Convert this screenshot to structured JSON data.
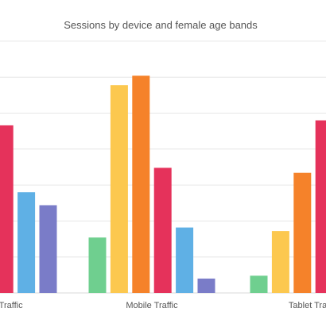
{
  "chart_data": {
    "type": "bar",
    "title": "Sessions by device and female age bands",
    "xlabel": "",
    "ylabel": "",
    "categories": [
      "Desktop Traffic",
      "Mobile Traffic",
      "Tablet Traffic"
    ],
    "ylim": [
      0,
      300
    ],
    "grid": true,
    "legend": "none",
    "series": [
      {
        "color": "#6fcf8f",
        "values": [
          null,
          77,
          24
        ]
      },
      {
        "color": "#fcc84f",
        "values": [
          null,
          289,
          86
        ]
      },
      {
        "color": "#f5822a",
        "values": [
          null,
          302,
          167
        ]
      },
      {
        "color": "#e5325b",
        "values": [
          233,
          174,
          240
        ]
      },
      {
        "color": "#5fb0e5",
        "values": [
          140,
          91,
          null
        ]
      },
      {
        "color": "#7a7cc8",
        "values": [
          122,
          20,
          null
        ]
      }
    ]
  }
}
